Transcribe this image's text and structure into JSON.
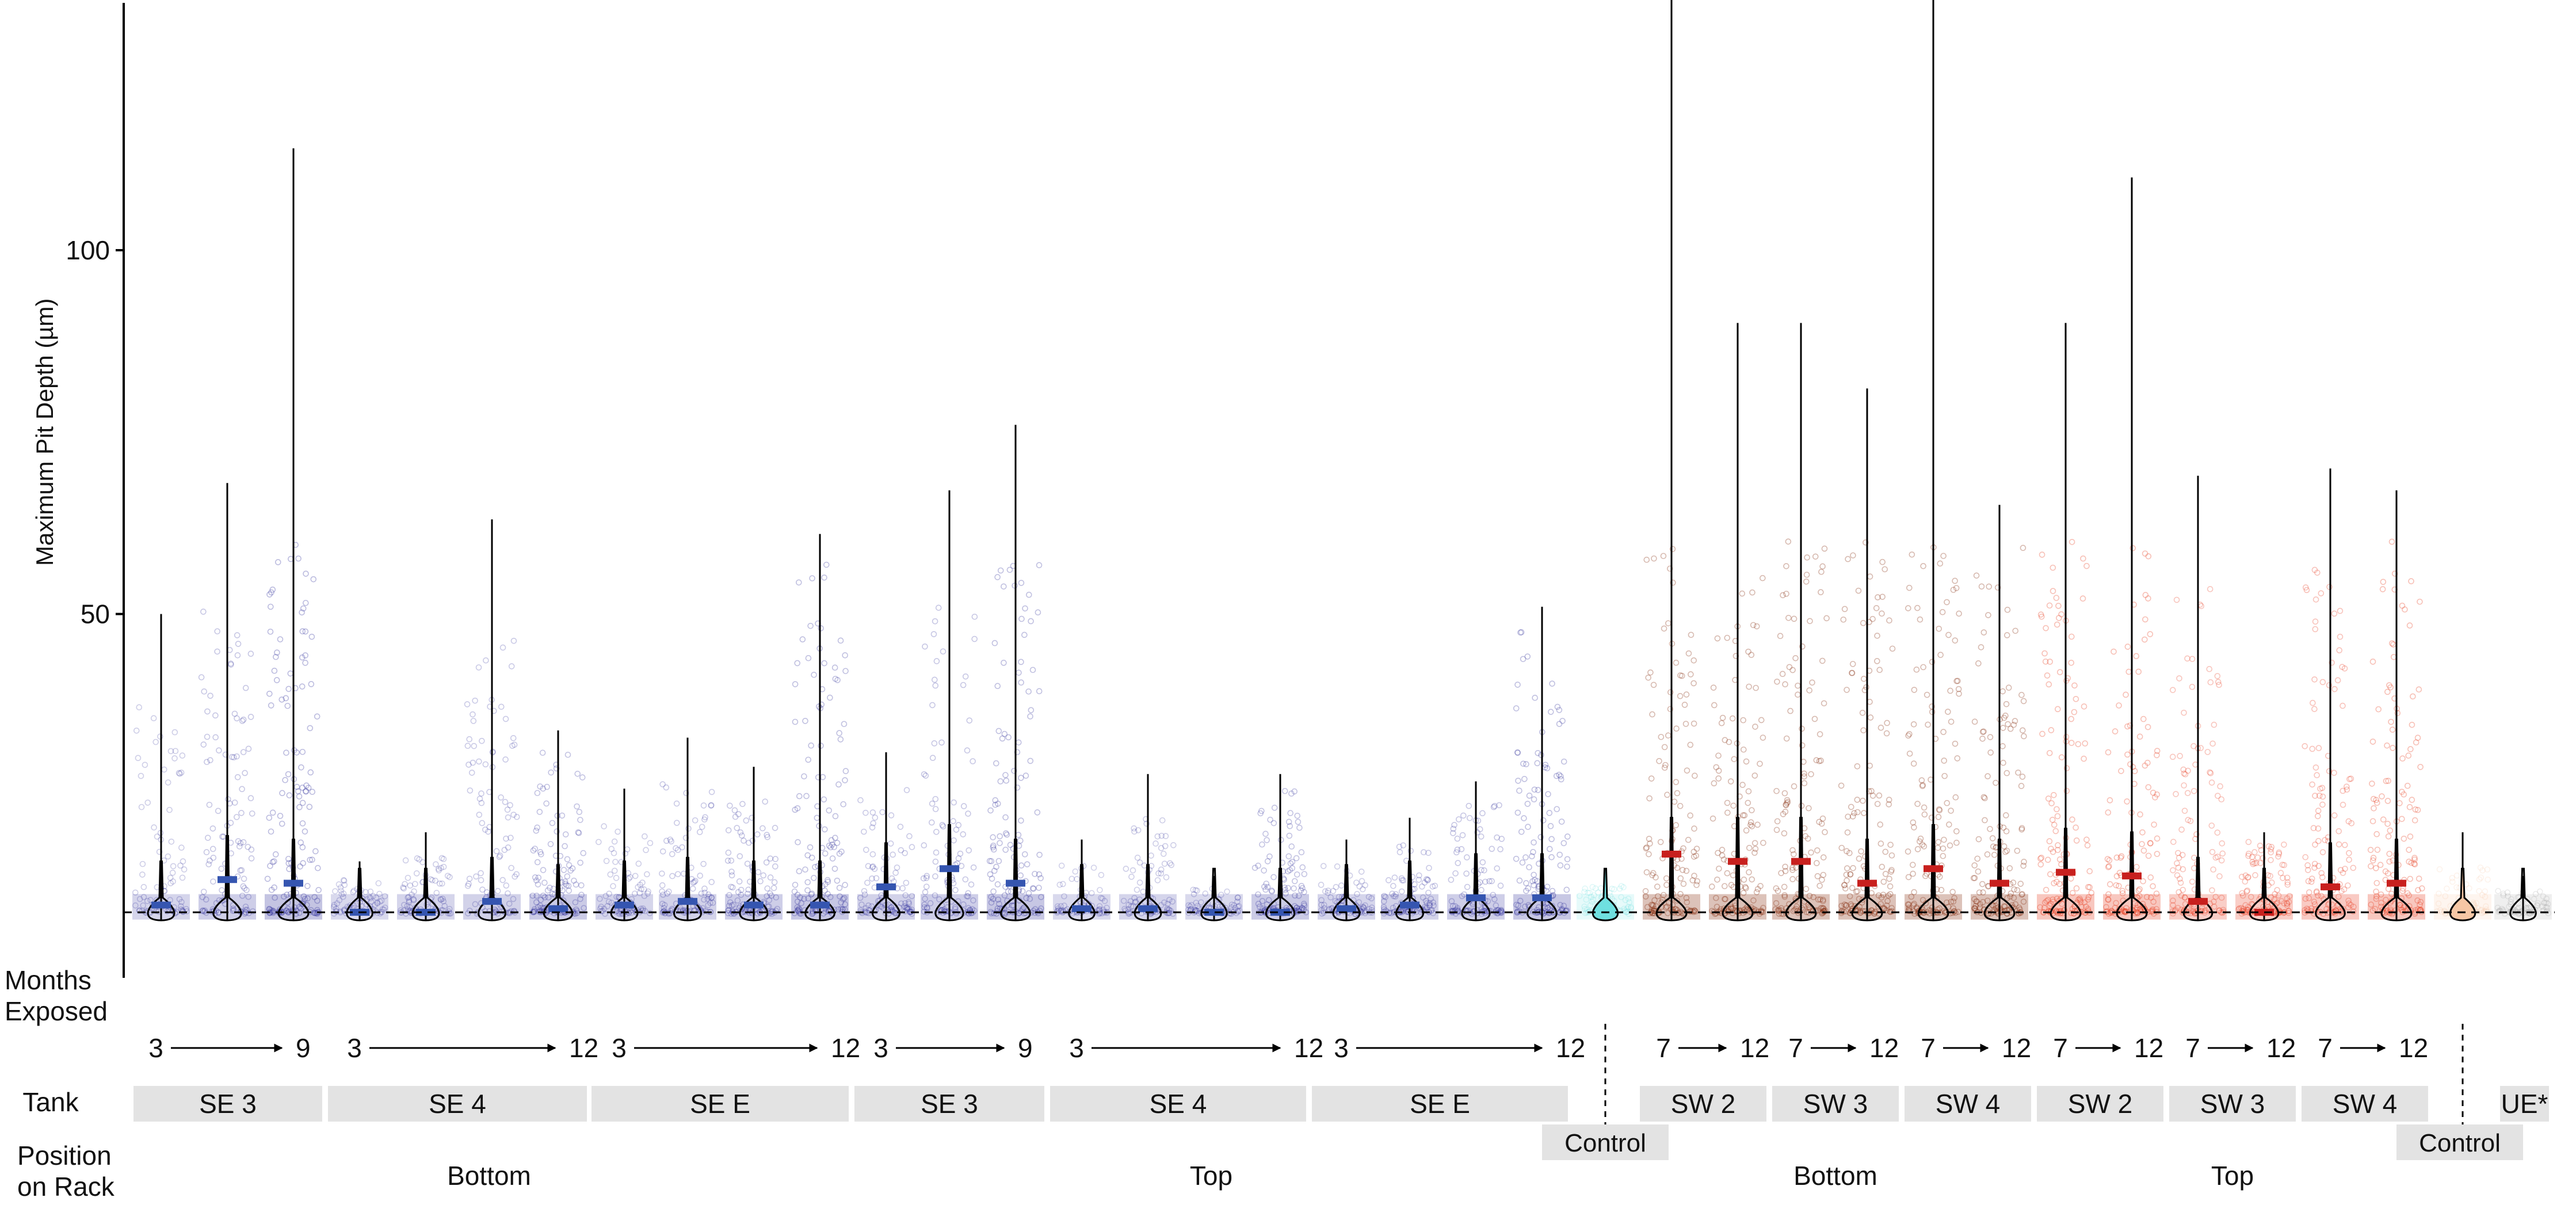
{
  "chart_data": {
    "type": "violin",
    "ylabel": "Maximum Pit Depth (µm)",
    "y_ticks": [
      50,
      100
    ],
    "ylim": [
      0,
      143
    ],
    "reference_line_y": 9,
    "row_labels": {
      "months": "Months\nExposed",
      "tank": "Tank",
      "position": "Position\non Rack"
    },
    "months_groups": [
      {
        "start": "3",
        "end": "9"
      },
      {
        "start": "3",
        "end": "12"
      },
      {
        "start": "3",
        "end": "12"
      },
      {
        "start": "3",
        "end": "9"
      },
      {
        "start": "3",
        "end": "12"
      },
      {
        "start": "3",
        "end": "12"
      },
      {
        "start": "7",
        "end": "12"
      },
      {
        "start": "7",
        "end": "12"
      },
      {
        "start": "7",
        "end": "12"
      },
      {
        "start": "7",
        "end": "12"
      },
      {
        "start": "7",
        "end": "12"
      },
      {
        "start": "7",
        "end": "12"
      }
    ],
    "tank_labels": [
      "SE 3",
      "SE 4",
      "SE E",
      "SE 3",
      "SE 4",
      "SE E",
      "SW 2",
      "SW 3",
      "SW 4",
      "SW 2",
      "SW 3",
      "SW 4",
      "UE*"
    ],
    "control_labels": [
      "Control",
      "Control"
    ],
    "position_labels": [
      "Bottom",
      "Top",
      "Bottom",
      "Top"
    ],
    "colors": {
      "se": "#3a3aa0",
      "se_median": "#3555b0",
      "sw_bottom": "#8a3418",
      "sw_top": "#e8452a",
      "median_red": "#c8201e",
      "control_se": "#6fe0e0",
      "control_sw": "#f7c7a5",
      "ue": "#aaaaaa",
      "tank_box": "#e3e3e3"
    },
    "series": [
      {
        "tank": "SE 3",
        "months": 3,
        "position": "Bottom",
        "median": 10,
        "max": 50,
        "spread": 0.5
      },
      {
        "tank": "SE 3",
        "months": 6,
        "position": "Bottom",
        "median": 13.5,
        "max": 68,
        "spread": 0.7
      },
      {
        "tank": "SE 3",
        "months": 9,
        "position": "Bottom",
        "median": 13,
        "max": 114,
        "spread": 1.0
      },
      {
        "tank": "SE 4",
        "months": 3,
        "position": "Bottom",
        "median": 9,
        "max": 16,
        "spread": 0.4
      },
      {
        "tank": "SE 4",
        "months": 6,
        "position": "Bottom",
        "median": 9,
        "max": 20,
        "spread": 0.5
      },
      {
        "tank": "SE 4",
        "months": 9,
        "position": "Bottom",
        "median": 10.5,
        "max": 63,
        "spread": 0.6
      },
      {
        "tank": "SE 4",
        "months": 12,
        "position": "Bottom",
        "median": 9.5,
        "max": 34,
        "spread": 0.8
      },
      {
        "tank": "SE E",
        "months": 3,
        "position": "Bottom",
        "median": 10,
        "max": 26,
        "spread": 0.5
      },
      {
        "tank": "SE E",
        "months": 6,
        "position": "Bottom",
        "median": 10.5,
        "max": 33,
        "spread": 0.6
      },
      {
        "tank": "SE E",
        "months": 9,
        "position": "Bottom",
        "median": 10,
        "max": 29,
        "spread": 0.7
      },
      {
        "tank": "SE E",
        "months": 12,
        "position": "Bottom",
        "median": 10,
        "max": 61,
        "spread": 0.9
      },
      {
        "tank": "SE 3",
        "months": 3,
        "position": "Top",
        "median": 12.5,
        "max": 31,
        "spread": 0.6
      },
      {
        "tank": "SE 3",
        "months": 6,
        "position": "Top",
        "median": 15,
        "max": 67,
        "spread": 0.7
      },
      {
        "tank": "SE 3",
        "months": 9,
        "position": "Top",
        "median": 13,
        "max": 76,
        "spread": 0.9
      },
      {
        "tank": "SE 4",
        "months": 3,
        "position": "Top",
        "median": 9.5,
        "max": 19,
        "spread": 0.4
      },
      {
        "tank": "SE 4",
        "months": 6,
        "position": "Top",
        "median": 9.5,
        "max": 28,
        "spread": 0.5
      },
      {
        "tank": "SE 4",
        "months": 9,
        "position": "Top",
        "median": 9,
        "max": 14,
        "spread": 0.4
      },
      {
        "tank": "SE 4",
        "months": 12,
        "position": "Top",
        "median": 9,
        "max": 28,
        "spread": 0.8
      },
      {
        "tank": "SE E",
        "months": 3,
        "position": "Top",
        "median": 9.5,
        "max": 19,
        "spread": 0.5
      },
      {
        "tank": "SE E",
        "months": 6,
        "position": "Top",
        "median": 10,
        "max": 22,
        "spread": 0.6
      },
      {
        "tank": "SE E",
        "months": 9,
        "position": "Top",
        "median": 11,
        "max": 27,
        "spread": 0.7
      },
      {
        "tank": "SE E",
        "months": 12,
        "position": "Top",
        "median": 11,
        "max": 51,
        "spread": 0.9
      },
      {
        "tank": "Control",
        "months": 0,
        "position": "Control",
        "median": 9,
        "max": 15,
        "spread": 0.3
      },
      {
        "tank": "SW 2",
        "months": 7,
        "position": "Bottom",
        "median": 17,
        "max": 136,
        "spread": 1.0
      },
      {
        "tank": "SW 2",
        "months": 12,
        "position": "Bottom",
        "median": 16,
        "max": 90,
        "spread": 1.0
      },
      {
        "tank": "SW 3",
        "months": 7,
        "position": "Bottom",
        "median": 16,
        "max": 90,
        "spread": 1.0
      },
      {
        "tank": "SW 3",
        "months": 12,
        "position": "Bottom",
        "median": 13,
        "max": 81,
        "spread": 1.0
      },
      {
        "tank": "SW 4",
        "months": 7,
        "position": "Bottom",
        "median": 15,
        "max": 137,
        "spread": 1.0
      },
      {
        "tank": "SW 4",
        "months": 12,
        "position": "Bottom",
        "median": 13,
        "max": 65,
        "spread": 1.0
      },
      {
        "tank": "SW 2",
        "months": 7,
        "position": "Top",
        "median": 14.5,
        "max": 90,
        "spread": 1.0
      },
      {
        "tank": "SW 2",
        "months": 12,
        "position": "Top",
        "median": 14,
        "max": 110,
        "spread": 1.0
      },
      {
        "tank": "SW 3",
        "months": 7,
        "position": "Top",
        "median": 10.5,
        "max": 69,
        "spread": 0.8
      },
      {
        "tank": "SW 3",
        "months": 12,
        "position": "Top",
        "median": 9,
        "max": 20,
        "spread": 0.8
      },
      {
        "tank": "SW 4",
        "months": 7,
        "position": "Top",
        "median": 12.5,
        "max": 70,
        "spread": 0.9
      },
      {
        "tank": "SW 4",
        "months": 12,
        "position": "Top",
        "median": 13,
        "max": 67,
        "spread": 1.0
      },
      {
        "tank": "Control",
        "months": 0,
        "position": "Control",
        "median": 9,
        "max": 20,
        "spread": 0.3
      },
      {
        "tank": "UE*",
        "months": 0,
        "position": "UE",
        "median": 9,
        "max": 14,
        "spread": 0.4
      }
    ]
  }
}
